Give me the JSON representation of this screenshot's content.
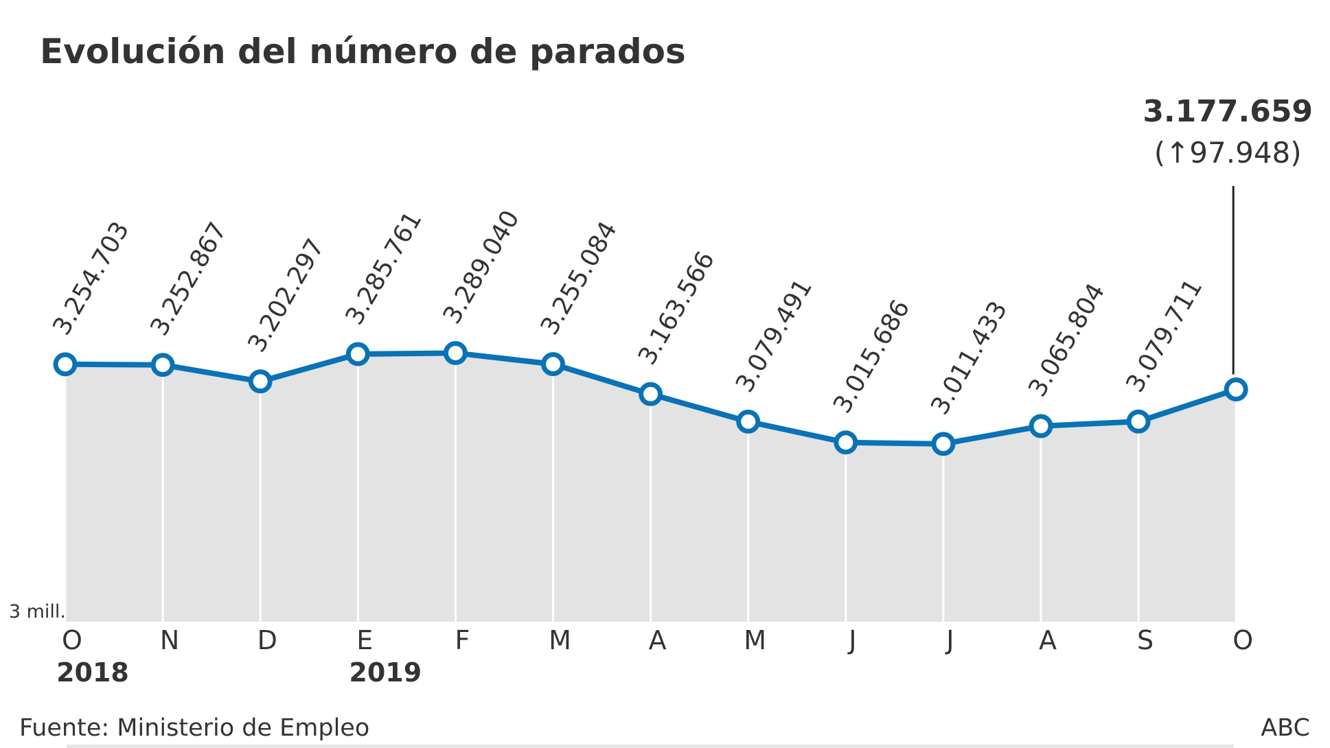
{
  "chart_data": {
    "type": "line",
    "title": "Evolución del número de parados",
    "categories": [
      "O",
      "N",
      "D",
      "E",
      "F",
      "M",
      "A",
      "M",
      "J",
      "J",
      "A",
      "S",
      "O"
    ],
    "year_labels": [
      "2018",
      null,
      null,
      "2019",
      null,
      null,
      null,
      null,
      null,
      null,
      null,
      null,
      null
    ],
    "series": [
      {
        "name": "Parados",
        "color": "#0a72b6",
        "values": [
          3254703,
          3252867,
          3202297,
          3285761,
          3289040,
          3255084,
          3163566,
          3079491,
          3015686,
          3011433,
          3065804,
          3079711,
          3177659
        ],
        "value_labels": [
          "3.254.703",
          "3.252.867",
          "3.202.297",
          "3.285.761",
          "3.289.040",
          "3.255.084",
          "3.163.566",
          "3.079.491",
          "3.015.686",
          "3.011.433",
          "3.065.804",
          "3.079.711",
          "3.177.659"
        ]
      }
    ],
    "change_label": "(↑97.948)",
    "y_axis_label": "3 mill.",
    "ylim": [
      2468000,
      3529000
    ],
    "area_color": "#e3e3e3",
    "source": "Fuente: Ministerio de Empleo",
    "credit": "ABC"
  }
}
